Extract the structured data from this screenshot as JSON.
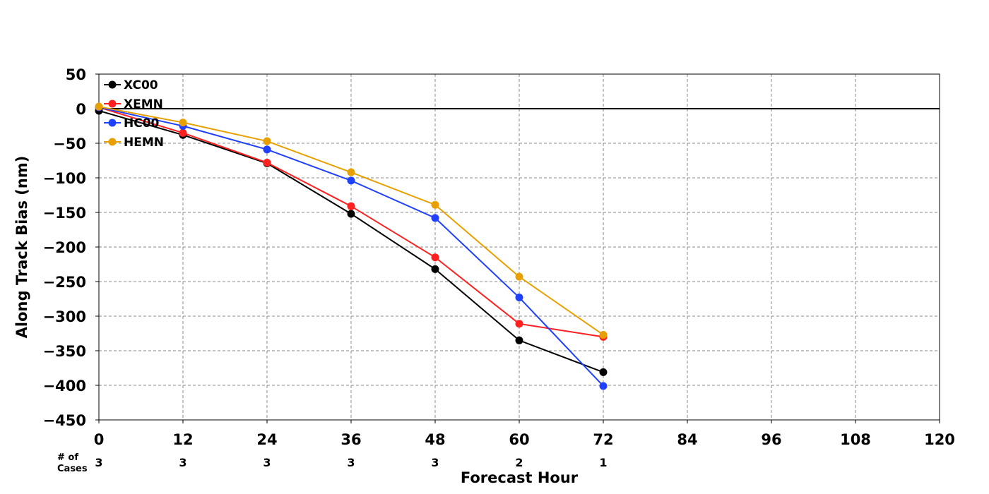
{
  "chart_data": {
    "type": "line",
    "title": "",
    "xlabel": "Forecast Hour",
    "ylabel": "Along Track Bias (nm)",
    "xlim": [
      0,
      120
    ],
    "ylim": [
      -450,
      50
    ],
    "xticks": [
      0,
      12,
      24,
      36,
      48,
      60,
      72,
      84,
      96,
      108,
      120
    ],
    "yticks": [
      50,
      0,
      -50,
      -100,
      -150,
      -200,
      -250,
      -300,
      -350,
      -400,
      -450
    ],
    "x_tick_labels": [
      "0",
      "12",
      "24",
      "36",
      "48",
      "60",
      "72",
      "84",
      "96",
      "108",
      "120"
    ],
    "y_tick_labels": [
      "50",
      "0",
      "−50",
      "−100",
      "−150",
      "−200",
      "−250",
      "−300",
      "−350",
      "−400",
      "−450"
    ],
    "grid": true,
    "zero_line": true,
    "legend_position": "top-left",
    "x": [
      0,
      12,
      24,
      36,
      48,
      60,
      72
    ],
    "series": [
      {
        "name": "XC00",
        "color": "#000000",
        "values": [
          -3,
          -38,
          -79,
          -152,
          -232,
          -335,
          -381
        ]
      },
      {
        "name": "XEMN",
        "color": "#ff2020",
        "values": [
          2,
          -35,
          -78,
          -141,
          -215,
          -311,
          -330
        ]
      },
      {
        "name": "HC00",
        "color": "#2040ff",
        "values": [
          2,
          -25,
          -59,
          -104,
          -158,
          -273,
          -401
        ]
      },
      {
        "name": "HEMN",
        "color": "#e8a000",
        "values": [
          3,
          -20,
          -47,
          -92,
          -139,
          -243,
          -327
        ]
      }
    ],
    "cases": {
      "label_line1": "# of",
      "label_line2": "Cases",
      "x": [
        0,
        12,
        24,
        36,
        48,
        60,
        72
      ],
      "values": [
        "3",
        "3",
        "3",
        "3",
        "3",
        "2",
        "1"
      ]
    }
  }
}
